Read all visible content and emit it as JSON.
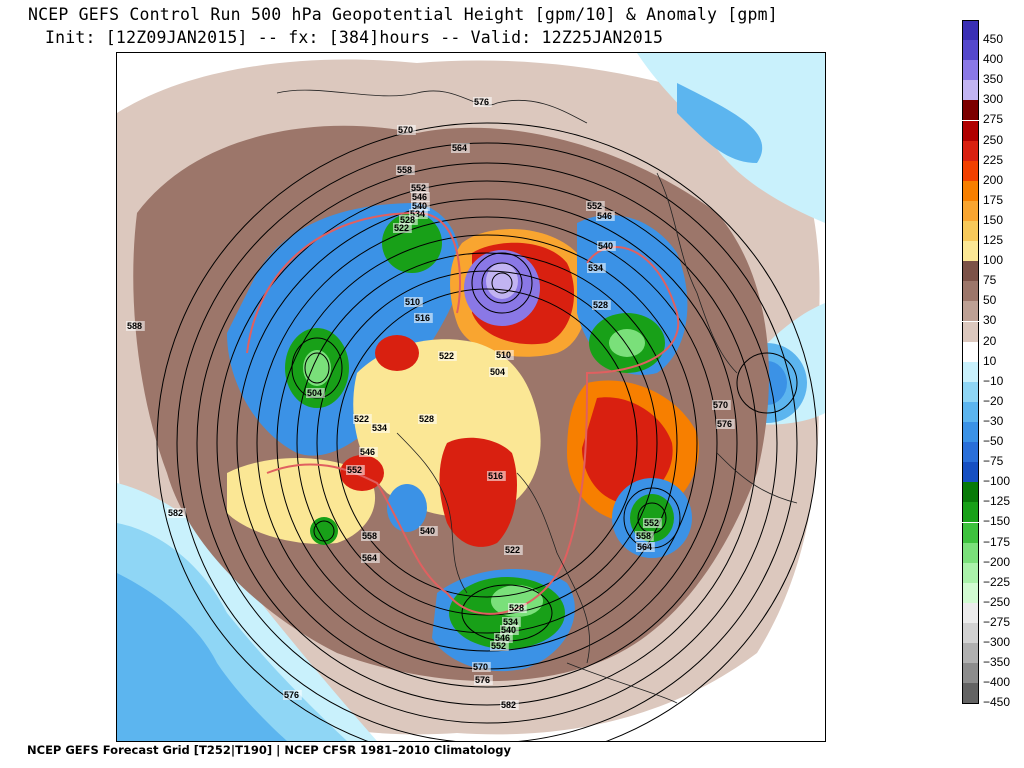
{
  "header": {
    "title_line1": "NCEP GEFS Control Run 500 hPa Geopotential Height [gpm/10] & Anomaly [gpm]",
    "title_line2": "Init: [12Z09JAN2015] -- fx: [384]hours -- Valid: 12Z25JAN2015"
  },
  "footer": {
    "text": "NCEP GEFS Forecast Grid [T252|T190] | NCEP CFSR 1981–2010 Climatology"
  },
  "colorbar": {
    "levels": [
      {
        "label": "450",
        "color": "#3a2fb4"
      },
      {
        "label": "400",
        "color": "#5548cc"
      },
      {
        "label": "350",
        "color": "#8a78e6"
      },
      {
        "label": "300",
        "color": "#c2b4f2"
      },
      {
        "label": "275",
        "color": "#7c0000"
      },
      {
        "label": "250",
        "color": "#b00000"
      },
      {
        "label": "225",
        "color": "#d92010"
      },
      {
        "label": "200",
        "color": "#f24000"
      },
      {
        "label": "175",
        "color": "#f77f00"
      },
      {
        "label": "150",
        "color": "#f9a530"
      },
      {
        "label": "125",
        "color": "#f7c95a"
      },
      {
        "label": "100",
        "color": "#fbe795"
      },
      {
        "label": "75",
        "color": "#7c5248"
      },
      {
        "label": "50",
        "color": "#9c766a"
      },
      {
        "label": "30",
        "color": "#bda094"
      },
      {
        "label": "20",
        "color": "#dcc8be"
      },
      {
        "label": "10",
        "color": "#ffffff"
      },
      {
        "label": "−10",
        "color": "#c9f1fc"
      },
      {
        "label": "−20",
        "color": "#8fd6f5"
      },
      {
        "label": "−30",
        "color": "#5cb5ef"
      },
      {
        "label": "−50",
        "color": "#3b92e6"
      },
      {
        "label": "−75",
        "color": "#2a6fd9"
      },
      {
        "label": "−100",
        "color": "#164fc2"
      },
      {
        "label": "−125",
        "color": "#087a08"
      },
      {
        "label": "−150",
        "color": "#18a018"
      },
      {
        "label": "−175",
        "color": "#3dc23d"
      },
      {
        "label": "−200",
        "color": "#7ae07a"
      },
      {
        "label": "−225",
        "color": "#aaf2aa"
      },
      {
        "label": "−250",
        "color": "#d2fbd2"
      },
      {
        "label": "−275",
        "color": "#ececec"
      },
      {
        "label": "−300",
        "color": "#d2d2d2"
      },
      {
        "label": "−350",
        "color": "#b0b0b0"
      },
      {
        "label": "−400",
        "color": "#8c8c8c"
      },
      {
        "label": "−450",
        "color": "#636363"
      }
    ]
  },
  "map": {
    "contour_labels": [
      "576",
      "570",
      "564",
      "558",
      "552",
      "546",
      "540",
      "534",
      "528",
      "522",
      "552",
      "546",
      "540",
      "534",
      "528",
      "510",
      "516",
      "522",
      "504",
      "510",
      "588",
      "504",
      "522",
      "534",
      "546",
      "552",
      "528",
      "516",
      "522",
      "540",
      "558",
      "564",
      "582",
      "570",
      "576",
      "528",
      "534",
      "540",
      "546",
      "552",
      "570",
      "576",
      "582",
      "552",
      "558",
      "564",
      "576"
    ]
  }
}
